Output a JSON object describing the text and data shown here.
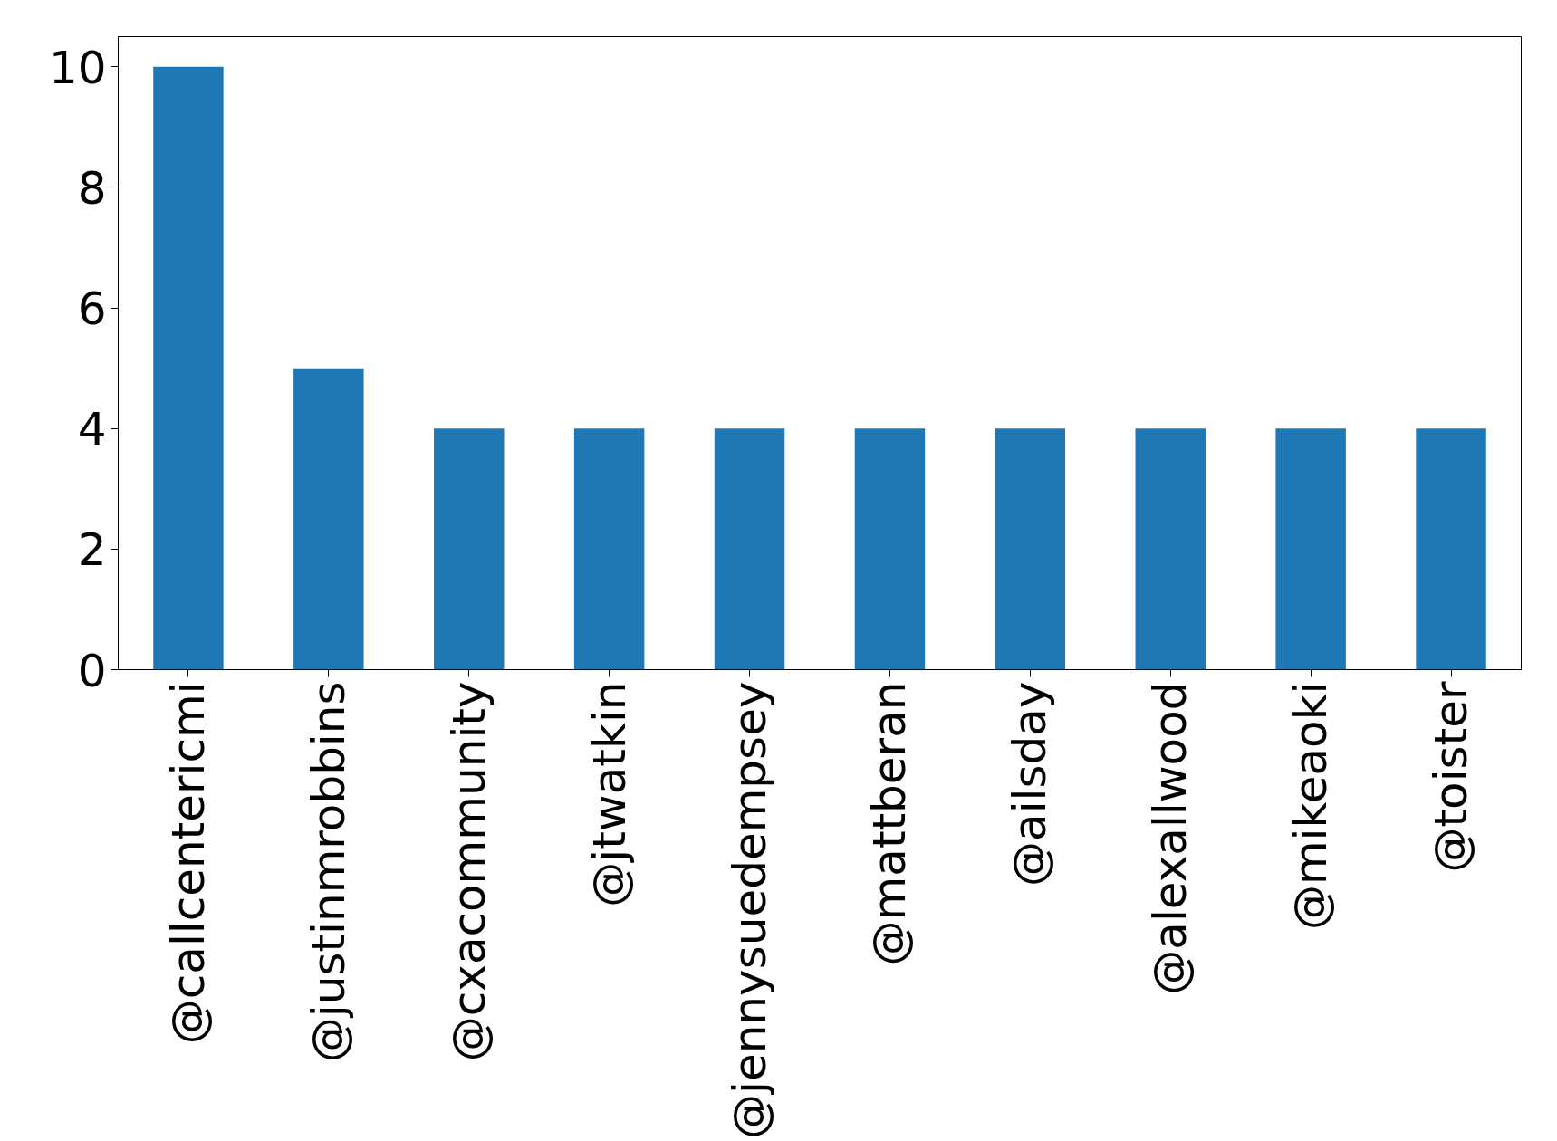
{
  "chart_data": {
    "type": "bar",
    "categories": [
      "@callcentericmi",
      "@justinmrobbins",
      "@cxacommunity",
      "@jtwatkin",
      "@jennysuedempsey",
      "@mattberan",
      "@ailsday",
      "@alexallwood",
      "@mikeaoki",
      "@toister"
    ],
    "values": [
      10,
      5,
      4,
      4,
      4,
      4,
      4,
      4,
      4,
      4
    ],
    "color": "#1f77b4",
    "ylim": [
      0,
      10.5
    ],
    "yticks": [
      0,
      2,
      4,
      6,
      8,
      10
    ],
    "grid": false
  }
}
